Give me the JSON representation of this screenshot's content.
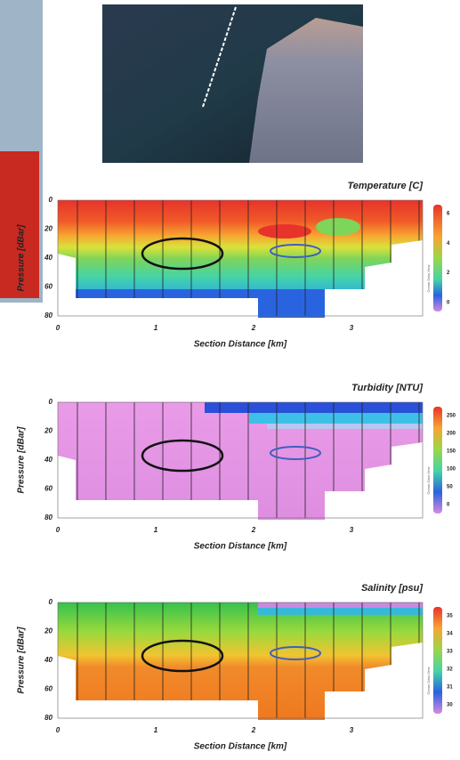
{
  "figure": {
    "panels": [
      {
        "title": "Temperature [C]",
        "x_label": "Section Distance [km]",
        "y_label": "Pressure [dBar]",
        "xticks": [
          "0",
          "1",
          "2",
          "3"
        ],
        "yticks": [
          "0",
          "20",
          "40",
          "60",
          "80"
        ],
        "colorbar_ticks": [
          "6",
          "4",
          "2",
          "0"
        ],
        "watermark": "Ocean Data View"
      },
      {
        "title": "Turbidity [NTU]",
        "x_label": "Section Distance [km]",
        "y_label": "Pressure [dBar]",
        "xticks": [
          "0",
          "1",
          "2",
          "3"
        ],
        "yticks": [
          "0",
          "20",
          "40",
          "60",
          "80"
        ],
        "colorbar_ticks": [
          "250",
          "200",
          "150",
          "100",
          "50",
          "0"
        ],
        "watermark": "Ocean Data View"
      },
      {
        "title": "Salinity [psu]",
        "x_label": "Section Distance [km]",
        "y_label": "Pressure [dBar]",
        "xticks": [
          "0",
          "1",
          "2",
          "3"
        ],
        "yticks": [
          "0",
          "20",
          "40",
          "60",
          "80"
        ],
        "colorbar_ticks": [
          "35",
          "34",
          "33",
          "32",
          "31",
          "30"
        ],
        "watermark": "Ocean Data View"
      }
    ]
  }
}
